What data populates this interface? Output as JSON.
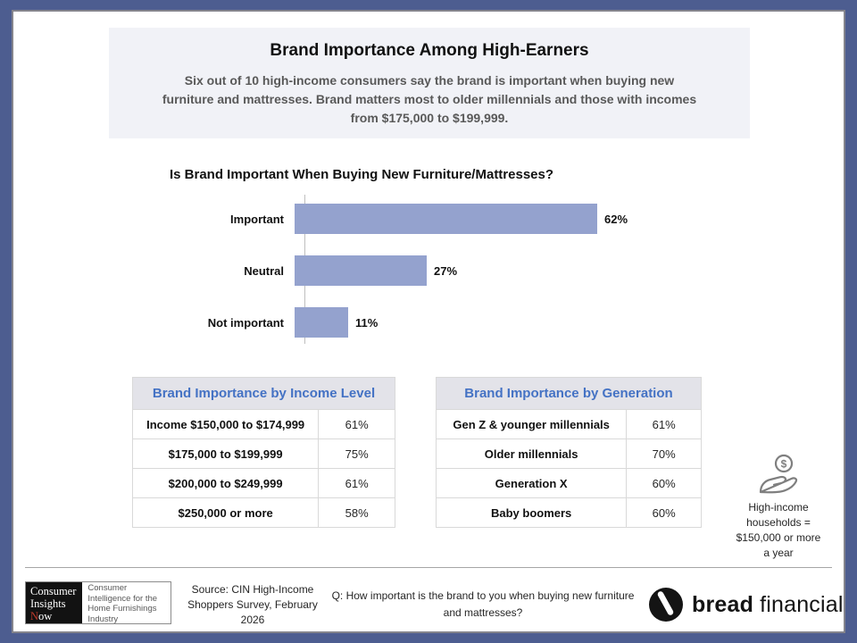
{
  "header": {
    "title": "Brand Importance Among High-Earners",
    "subtitle": "Six out of 10 high-income consumers say the brand is important when buying new furniture and mattresses. Brand matters most to older millennials and those with incomes from $175,000 to $199,999."
  },
  "chart_data": {
    "type": "bar",
    "orientation": "horizontal",
    "title": "Is Brand Important When Buying New Furniture/Mattresses?",
    "categories": [
      "Important",
      "Neutral",
      "Not important"
    ],
    "values": [
      62,
      27,
      11
    ],
    "value_labels": [
      "62%",
      "27%",
      "11%"
    ],
    "xlim": [
      0,
      100
    ],
    "bar_color": "#94a2ce",
    "grid": false,
    "legend": false
  },
  "tables": {
    "income": {
      "title": "Brand Importance by Income Level",
      "rows": [
        {
          "label": "Income $150,000 to $174,999",
          "value": "61%"
        },
        {
          "label": "$175,000 to $199,999",
          "value": "75%"
        },
        {
          "label": "$200,000 to $249,999",
          "value": "61%"
        },
        {
          "label": "$250,000 or more",
          "value": "58%"
        }
      ]
    },
    "generation": {
      "title": "Brand Importance by Generation",
      "rows": [
        {
          "label": "Gen Z & younger millennials",
          "value": "61%"
        },
        {
          "label": "Older millennials",
          "value": "70%"
        },
        {
          "label": "Generation X",
          "value": "60%"
        },
        {
          "label": "Baby boomers",
          "value": "60%"
        }
      ]
    }
  },
  "aside": {
    "icon": "hand-coin-icon",
    "note": "High-income households = $150,000 or more a year"
  },
  "footer": {
    "cin_logo": {
      "word1": "Consumer",
      "word2": "Insights",
      "word3_initial": "N",
      "word3_rest": "ow",
      "caption": "Consumer Intelligence for the Home Furnishings Industry"
    },
    "source": "Source: CIN High-Income Shoppers Survey, February 2026",
    "question": "Q: How important is the brand to you when buying new furniture and mattresses?",
    "brand": {
      "bold": "bread",
      "regular": "financial",
      "period": "."
    }
  },
  "colors": {
    "frame": "#4d5d90",
    "bar": "#94a2ce",
    "header_bg": "#f1f2f7",
    "table_header_bg": "#e3e3e9",
    "table_header_text": "#4472c4"
  }
}
